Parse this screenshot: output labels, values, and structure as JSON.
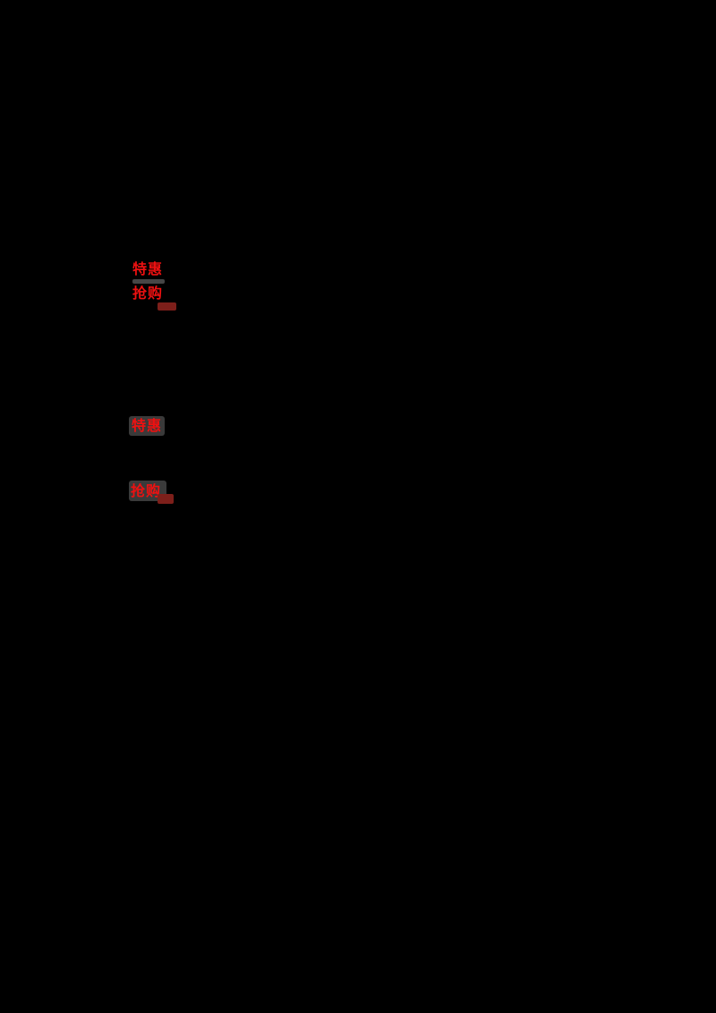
{
  "page": {
    "background_color": "#000000",
    "description_visible_content": "mostly black screen with red promotional tags"
  },
  "colors": {
    "tag_red": "#ee1111",
    "chip_gray": "#3a3a3a",
    "bar_gray": "#464646",
    "badge_dark_red": "#7d1f1a"
  },
  "tag_group_upper": {
    "line1_label": "特惠",
    "line2_label": "抢购"
  },
  "tag_group_lower": {
    "chip1_label": "特惠",
    "chip2_label": "抢购"
  },
  "icons": {
    "upper_mini_badge": "hot-badge",
    "lower_mini_badge": "hot-badge"
  }
}
